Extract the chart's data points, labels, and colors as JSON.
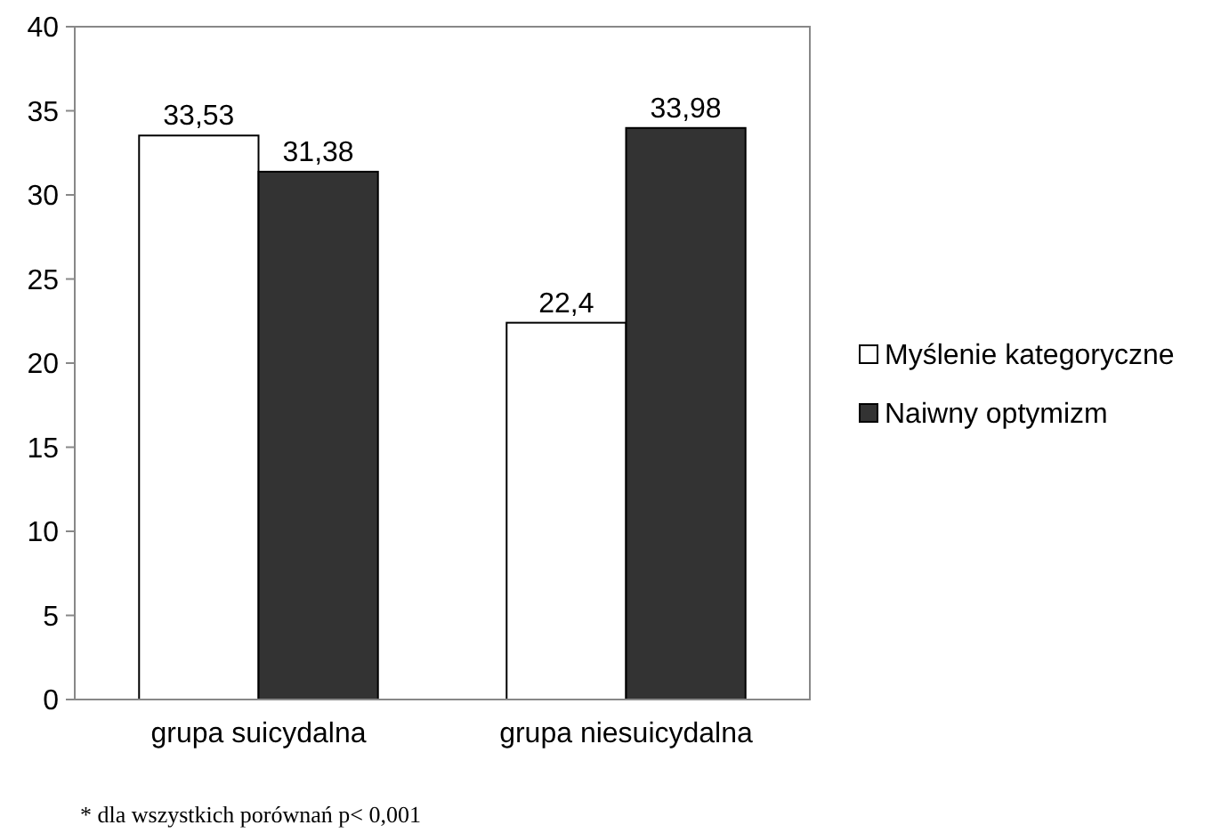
{
  "chart_data": {
    "type": "bar",
    "categories": [
      "grupa suicydalna",
      "grupa niesuicydalna"
    ],
    "series": [
      {
        "name": "Myślenie kategoryczne",
        "color": "#ffffff",
        "values": [
          33.53,
          22.4
        ],
        "value_labels": [
          "33,53",
          "22,4"
        ]
      },
      {
        "name": "Naiwny optymizm",
        "color": "#333333",
        "values": [
          31.38,
          33.98
        ],
        "value_labels": [
          "31,38",
          "33,98"
        ]
      }
    ],
    "ylim": [
      0,
      40
    ],
    "yticks": [
      0,
      5,
      10,
      15,
      20,
      25,
      30,
      35,
      40
    ],
    "grid": false,
    "legend": "right",
    "annotations": [
      "* dla wszystkich porównań p< 0,001"
    ]
  }
}
